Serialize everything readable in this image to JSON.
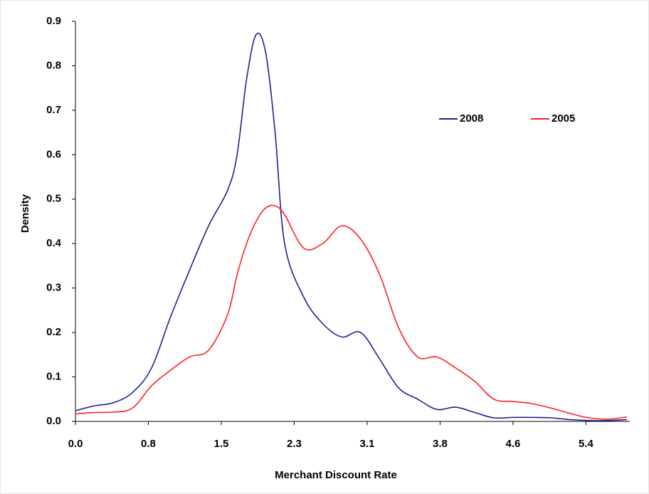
{
  "chart_data": {
    "type": "line",
    "x_label": "Merchant Discount Rate",
    "y_label": "Density",
    "x": [
      0,
      0.2,
      0.4,
      0.6,
      0.8,
      1.0,
      1.2,
      1.4,
      1.6,
      1.7,
      1.8,
      1.9,
      2.0,
      2.1,
      2.2,
      2.4,
      2.6,
      2.8,
      3.0,
      3.2,
      3.4,
      3.6,
      3.8,
      4.0,
      4.2,
      4.4,
      4.6,
      4.8,
      5.0,
      5.2,
      5.4,
      5.6,
      5.8
    ],
    "series": [
      {
        "name": "2008",
        "color": "#1f1f8f",
        "values": [
          0.024,
          0.035,
          0.042,
          0.065,
          0.12,
          0.235,
          0.34,
          0.44,
          0.52,
          0.6,
          0.77,
          0.87,
          0.83,
          0.65,
          0.4,
          0.28,
          0.22,
          0.19,
          0.2,
          0.14,
          0.075,
          0.05,
          0.027,
          0.032,
          0.02,
          0.008,
          0.009,
          0.009,
          0.008,
          0.004,
          0.002,
          0.002,
          0.004
        ]
      },
      {
        "name": "2005",
        "color": "#ff1f1f",
        "values": [
          0.017,
          0.02,
          0.021,
          0.03,
          0.08,
          0.115,
          0.145,
          0.16,
          0.24,
          0.33,
          0.4,
          0.45,
          0.48,
          0.485,
          0.465,
          0.39,
          0.4,
          0.44,
          0.41,
          0.33,
          0.21,
          0.145,
          0.145,
          0.12,
          0.09,
          0.05,
          0.045,
          0.04,
          0.03,
          0.018,
          0.008,
          0.005,
          0.01
        ]
      }
    ],
    "xlim": [
      0,
      5.83
    ],
    "xticks": [
      {
        "value": 0,
        "label": "0.0"
      },
      {
        "value": 0.767,
        "label": "0.8"
      },
      {
        "value": 1.534,
        "label": "1.5"
      },
      {
        "value": 2.301,
        "label": "2.3"
      },
      {
        "value": 3.068,
        "label": "3.1"
      },
      {
        "value": 3.835,
        "label": "3.8"
      },
      {
        "value": 4.602,
        "label": "4.6"
      },
      {
        "value": 5.369,
        "label": "5.4"
      }
    ],
    "ylim": [
      0,
      0.9
    ],
    "yticks": [
      {
        "value": 0,
        "label": "0.0"
      },
      0.1,
      0.2,
      0.3,
      0.4,
      0.5,
      0.6,
      0.7,
      0.8,
      0.9
    ],
    "grid": false,
    "legend": "upper-right"
  }
}
